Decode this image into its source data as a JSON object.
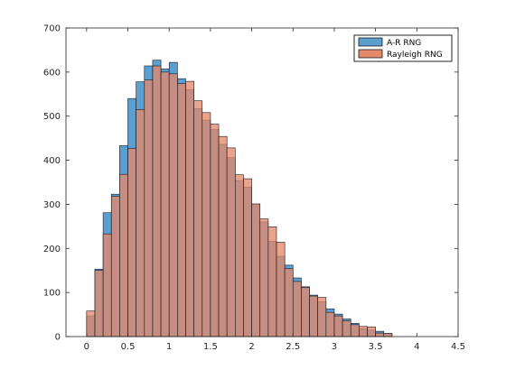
{
  "chart_data": {
    "type": "bar",
    "subtype": "overlapping-histogram",
    "x_range": [
      -0.25,
      4.5
    ],
    "ylim": [
      0,
      700
    ],
    "grid": false,
    "legend_position": "top-right",
    "x_ticks": [
      0,
      0.5,
      1,
      1.5,
      2,
      2.5,
      3,
      3.5,
      4,
      4.5
    ],
    "x_tick_labels": [
      "0",
      "0.5",
      "1",
      "1.5",
      "2",
      "2.5",
      "3",
      "3.5",
      "4",
      "4.5"
    ],
    "y_ticks": [
      0,
      100,
      200,
      300,
      400,
      500,
      600,
      700
    ],
    "y_tick_labels": [
      "0",
      "100",
      "200",
      "300",
      "400",
      "500",
      "600",
      "700"
    ],
    "bin_width": 0.1,
    "bin_starts": [
      0,
      0.1,
      0.2,
      0.3,
      0.4,
      0.5,
      0.6,
      0.7,
      0.8,
      0.9,
      1.0,
      1.1,
      1.2,
      1.3,
      1.4,
      1.5,
      1.6,
      1.7,
      1.8,
      1.9,
      2.0,
      2.1,
      2.2,
      2.3,
      2.4,
      2.5,
      2.6,
      2.7,
      2.8,
      2.9,
      3.0,
      3.1,
      3.2,
      3.3,
      3.4,
      3.5,
      3.6
    ],
    "series": [
      {
        "name": "A-R RNG",
        "color": "#5b9fd0",
        "values": [
          47,
          153,
          281,
          323,
          433,
          540,
          578,
          614,
          627,
          607,
          622,
          585,
          560,
          517,
          491,
          470,
          436,
          406,
          354,
          339,
          300,
          260,
          216,
          182,
          162,
          133,
          113,
          94,
          79,
          63,
          51,
          40,
          30,
          18,
          15,
          12,
          7
        ]
      },
      {
        "name": "Rayleigh RNG",
        "color": "#e4896b",
        "values": [
          58,
          150,
          233,
          318,
          368,
          427,
          515,
          582,
          614,
          600,
          596,
          574,
          579,
          535,
          508,
          482,
          454,
          428,
          367,
          358,
          301,
          267,
          249,
          214,
          154,
          125,
          111,
          92,
          89,
          55,
          47,
          36,
          27,
          23,
          22,
          8,
          7
        ]
      }
    ]
  },
  "legend": {
    "items": [
      {
        "label": "A-R RNG",
        "color": "#5b9fd0"
      },
      {
        "label": "Rayleigh RNG",
        "color": "#e4896b"
      }
    ]
  }
}
